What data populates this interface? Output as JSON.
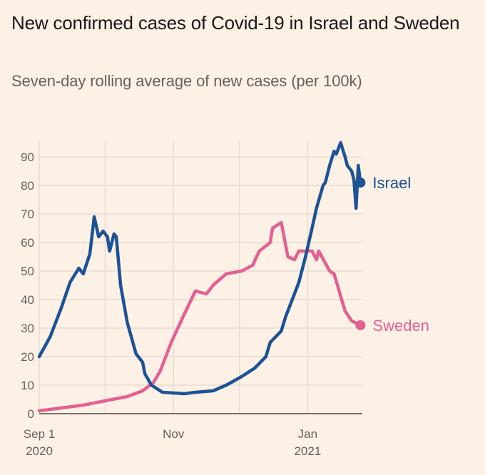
{
  "chart_data": {
    "type": "line",
    "title": "New confirmed cases of Covid-19 in Israel and Sweden",
    "subtitle": "Seven-day rolling average of new cases (per 100k)",
    "xlabel": "",
    "ylabel": "",
    "x_unit": "days since Sep 1 2020",
    "xlim": [
      0,
      146
    ],
    "ylim": [
      0,
      95
    ],
    "yticks": [
      0,
      10,
      20,
      30,
      40,
      50,
      60,
      70,
      80,
      90
    ],
    "xticks": [
      {
        "day": 0,
        "label": "Sep 1",
        "sublabel": "2020"
      },
      {
        "day": 30,
        "label": "",
        "sublabel": ""
      },
      {
        "day": 61,
        "label": "Nov",
        "sublabel": ""
      },
      {
        "day": 91,
        "label": "",
        "sublabel": ""
      },
      {
        "day": 122,
        "label": "Jan",
        "sublabel": "2021"
      }
    ],
    "grid": true,
    "legend": "inline-end-labels",
    "series": [
      {
        "name": "Israel",
        "color": "#1c5296",
        "x": [
          0,
          5,
          10,
          14,
          18,
          20,
          23,
          25,
          27,
          29,
          31,
          32,
          34,
          35,
          37,
          40,
          44,
          47,
          48,
          51,
          56,
          66,
          71,
          79,
          85,
          92,
          98,
          103,
          105,
          110,
          112,
          115,
          118,
          121,
          124,
          126,
          129,
          130,
          132,
          134,
          135,
          137,
          139,
          140,
          142,
          143,
          144,
          145,
          146
        ],
        "values": [
          20,
          27,
          37,
          46,
          51,
          49,
          56,
          69,
          62,
          64,
          62,
          57,
          63,
          62,
          45,
          32,
          21,
          18,
          14,
          10,
          7.5,
          7,
          7.5,
          8,
          10,
          13,
          16,
          20,
          25,
          29,
          34,
          40,
          46,
          55,
          65,
          72,
          80,
          81,
          87,
          92,
          91,
          95,
          90,
          87,
          85,
          82,
          72,
          87,
          81
        ]
      },
      {
        "name": "Sweden",
        "color": "#e55f91",
        "x": [
          0,
          10,
          20,
          30,
          40,
          47,
          52,
          55,
          60,
          66,
          71,
          76,
          79,
          85,
          92,
          97,
          100,
          105,
          106,
          110,
          113,
          116,
          118,
          124,
          126,
          127,
          132,
          134,
          139,
          142,
          146
        ],
        "values": [
          1,
          2,
          3,
          4.5,
          6,
          8,
          11,
          15,
          25,
          35,
          43,
          42,
          45,
          49,
          50,
          52,
          57,
          60,
          65,
          67,
          55,
          54,
          57,
          57,
          54,
          57,
          50,
          49,
          36,
          32.5,
          31
        ]
      }
    ],
    "end_labels": [
      {
        "series": "Israel",
        "label": "Israel",
        "value": 81
      },
      {
        "series": "Sweden",
        "label": "Sweden",
        "value": 31
      }
    ]
  },
  "colors": {
    "background": "#fdf1e6",
    "grid": "#e8dcd2",
    "axis": "#4e4741",
    "tick_text": "#66605c",
    "title_text": "#1a1817",
    "subtitle_text": "#66605c"
  }
}
